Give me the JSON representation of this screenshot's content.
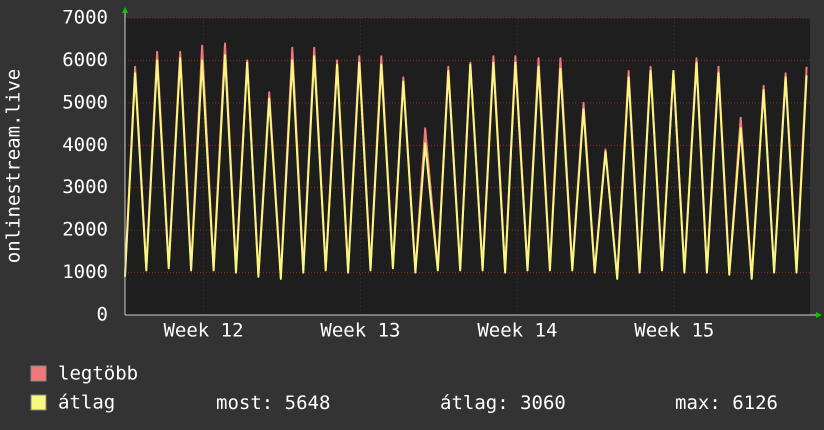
{
  "chart_data": {
    "type": "line",
    "ylabel": "onlinestream.live",
    "x": [
      0,
      0.45,
      0.95,
      1.43,
      1.95,
      2.46,
      2.95,
      3.44,
      3.95,
      4.46,
      4.95,
      5.45,
      5.95,
      6.43,
      6.95,
      7.46,
      7.95,
      8.44,
      8.95,
      9.46,
      9.95,
      10.45,
      10.95,
      11.43,
      11.95,
      12.41,
      12.95,
      13.39,
      13.95,
      14.42,
      14.95,
      15.4,
      15.95,
      16.43,
      16.95,
      17.41,
      17.95,
      18.44,
      18.95,
      19.42,
      19.95,
      20.45,
      20.95,
      21.43,
      21.95,
      22.46,
      22.95,
      23.44,
      23.95,
      24.46,
      24.95,
      25.49,
      25.95,
      26.47,
      26.95,
      27.46,
      27.95,
      28.48,
      28.95,
      29.46,
      29.95,
      30.4
    ],
    "series": [
      {
        "name": "legtöbb",
        "color": "#f07878",
        "values": [
          950,
          5850,
          1100,
          6200,
          1150,
          6200,
          1100,
          6350,
          1100,
          6400,
          1050,
          6000,
          950,
          5250,
          900,
          6300,
          1050,
          6300,
          1100,
          6000,
          1050,
          6100,
          1100,
          6100,
          1150,
          5600,
          1050,
          4400,
          1100,
          5850,
          1100,
          5950,
          1100,
          6100,
          1050,
          6100,
          1100,
          6050,
          1100,
          6050,
          1100,
          5000,
          1050,
          3900,
          900,
          5750,
          1050,
          5850,
          1100,
          5750,
          1050,
          6050,
          1050,
          5850,
          1000,
          4650,
          900,
          5400,
          1050,
          5700,
          1050,
          5850
        ]
      },
      {
        "name": "átlag",
        "color": "#f8f880",
        "values": [
          900,
          5700,
          1050,
          6000,
          1100,
          6050,
          1050,
          6000,
          1050,
          6126,
          1000,
          5950,
          900,
          5100,
          850,
          6000,
          1000,
          6100,
          1050,
          5900,
          1000,
          5950,
          1050,
          5900,
          1100,
          5500,
          1000,
          4050,
          1050,
          5750,
          1050,
          5900,
          1050,
          5950,
          1000,
          5950,
          1050,
          5850,
          1050,
          5800,
          1050,
          4850,
          1000,
          3850,
          850,
          5600,
          1000,
          5750,
          1050,
          5750,
          1000,
          5950,
          1000,
          5700,
          950,
          4400,
          850,
          5300,
          1000,
          5600,
          1000,
          5648
        ]
      }
    ],
    "stats": [
      {
        "label": "most:",
        "value": 5648
      },
      {
        "label": "átlag:",
        "value": 3060
      },
      {
        "label": "max:",
        "value": 6126
      }
    ],
    "xlim": [
      0,
      30.55
    ],
    "xticks": [
      {
        "value": 3.5,
        "label": "Week 12"
      },
      {
        "value": 10.5,
        "label": "Week 13"
      },
      {
        "value": 17.5,
        "label": "Week 14"
      },
      {
        "value": 24.5,
        "label": "Week 15"
      }
    ],
    "ylim": [
      0,
      7000
    ],
    "yticks": [
      0,
      1000,
      2000,
      3000,
      4000,
      5000,
      6000,
      7000
    ],
    "grid": true
  }
}
